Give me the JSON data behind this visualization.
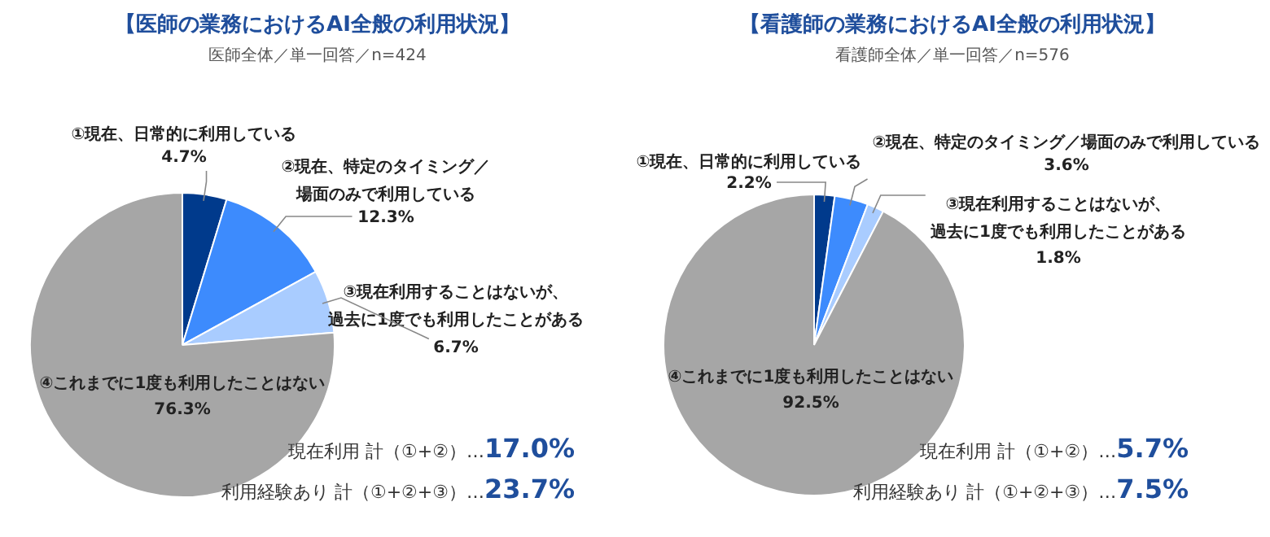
{
  "chart_data": [
    {
      "type": "pie",
      "title": "【医師の業務におけるAI全般の利用状況】",
      "subtitle": "医師全体／単一回答／n=424",
      "categories": [
        "①現在、日常的に利用している",
        "②現在、特定のタイミング／場面のみで利用している",
        "③現在利用することはないが、過去に1度でも利用したことがある",
        "④これまでに1度も利用したことはない"
      ],
      "values": [
        4.7,
        12.3,
        6.7,
        76.3
      ],
      "colors": [
        "#003a8c",
        "#3d8bfd",
        "#a9ccff",
        "#a6a6a6"
      ],
      "value_labels": [
        "4.7%",
        "12.3%",
        "6.7%",
        "76.3%"
      ],
      "annotations": [
        "現在利用 計（①+②）…17.0%",
        "利用経験あり 計（①+②+③）…23.7%"
      ]
    },
    {
      "type": "pie",
      "title": "【看護師の業務におけるAI全般の利用状況】",
      "subtitle": "看護師全体／単一回答／n=576",
      "categories": [
        "①現在、日常的に利用している",
        "②現在、特定のタイミング／場面のみで利用している",
        "③現在利用することはないが、過去に1度でも利用したことがある",
        "④これまでに1度も利用したことはない"
      ],
      "values": [
        2.2,
        3.6,
        1.8,
        92.5
      ],
      "colors": [
        "#003a8c",
        "#3d8bfd",
        "#a9ccff",
        "#a6a6a6"
      ],
      "value_labels": [
        "2.2%",
        "3.6%",
        "1.8%",
        "92.5%"
      ],
      "annotations": [
        "現在利用 計（①+②）…5.7%",
        "利用経験あり 計（①+②+③）…7.5%"
      ]
    }
  ]
}
